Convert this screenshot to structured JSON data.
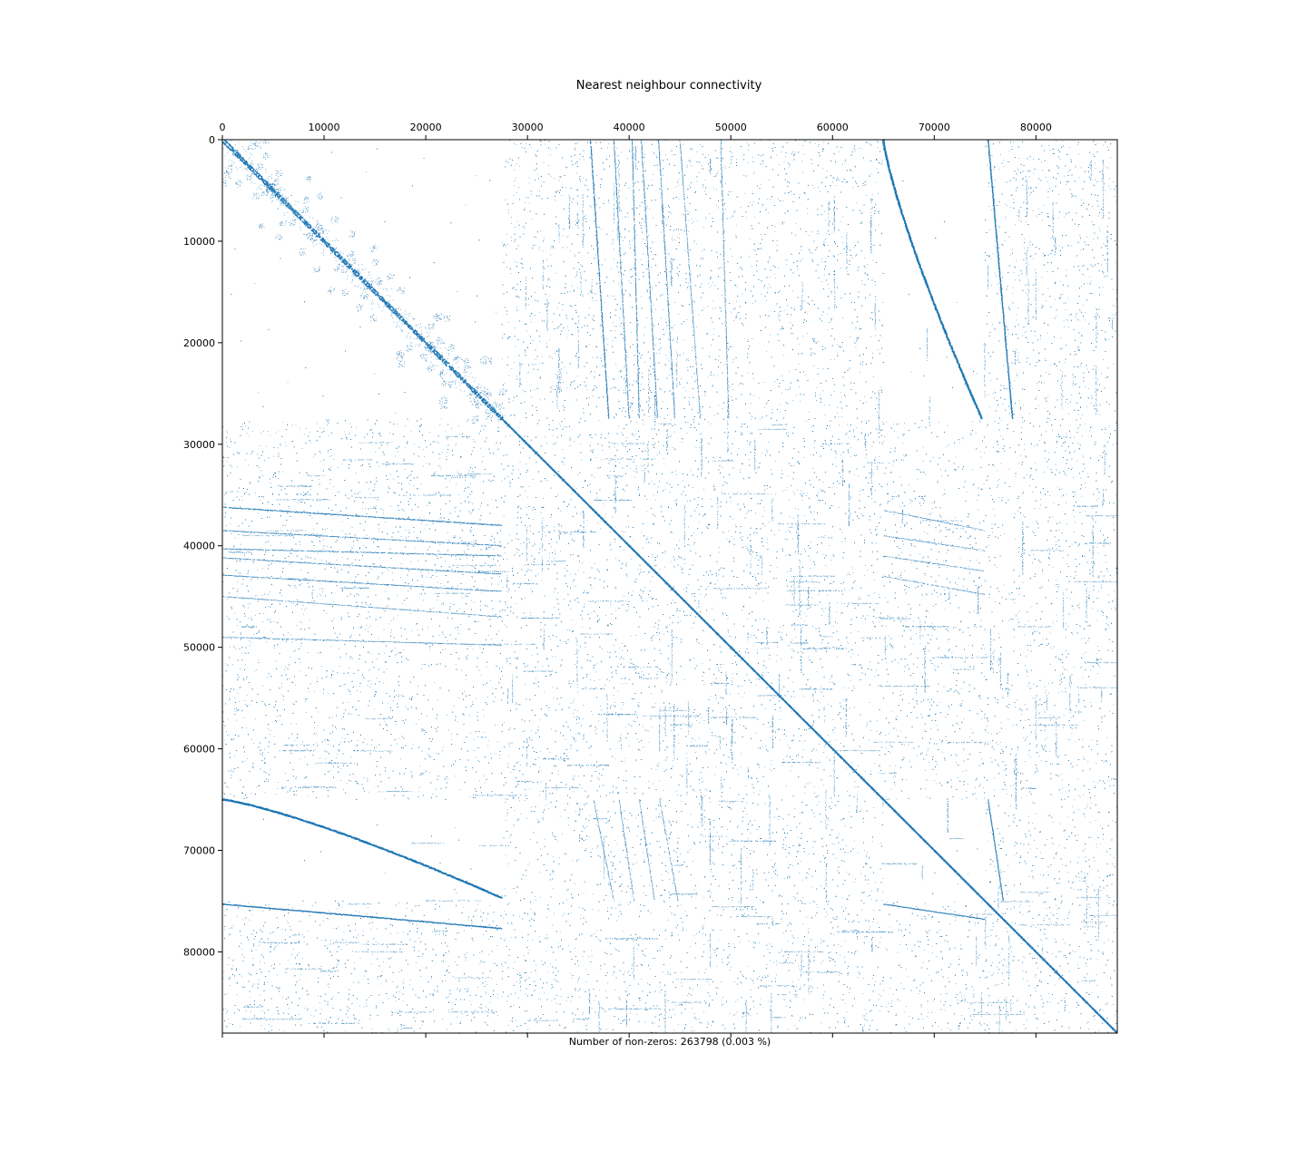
{
  "chart_data": {
    "type": "spy",
    "title": "Nearest neighbour connectivity",
    "xlabel": "Number of non-zeros: 263798 (0.003 %)",
    "ylabel": "",
    "x_axis_position": "top",
    "xlim": [
      0,
      88000
    ],
    "ylim": [
      88000,
      0
    ],
    "x_ticks": [
      0,
      10000,
      20000,
      30000,
      40000,
      50000,
      60000,
      70000,
      80000
    ],
    "y_ticks": [
      0,
      10000,
      20000,
      30000,
      40000,
      50000,
      60000,
      70000,
      80000
    ],
    "x_tick_labels": [
      "0",
      "10000",
      "20000",
      "30000",
      "40000",
      "50000",
      "60000",
      "70000",
      "80000"
    ],
    "y_tick_labels": [
      "0",
      "10000",
      "20000",
      "30000",
      "40000",
      "50000",
      "60000",
      "70000",
      "80000"
    ],
    "matrix_size": 88000,
    "nonzeros": 263798,
    "density_percent": 0.003,
    "marker_color": "#1f77b4",
    "grid": false,
    "block_boundaries": [
      27500,
      65000,
      75000
    ]
  }
}
